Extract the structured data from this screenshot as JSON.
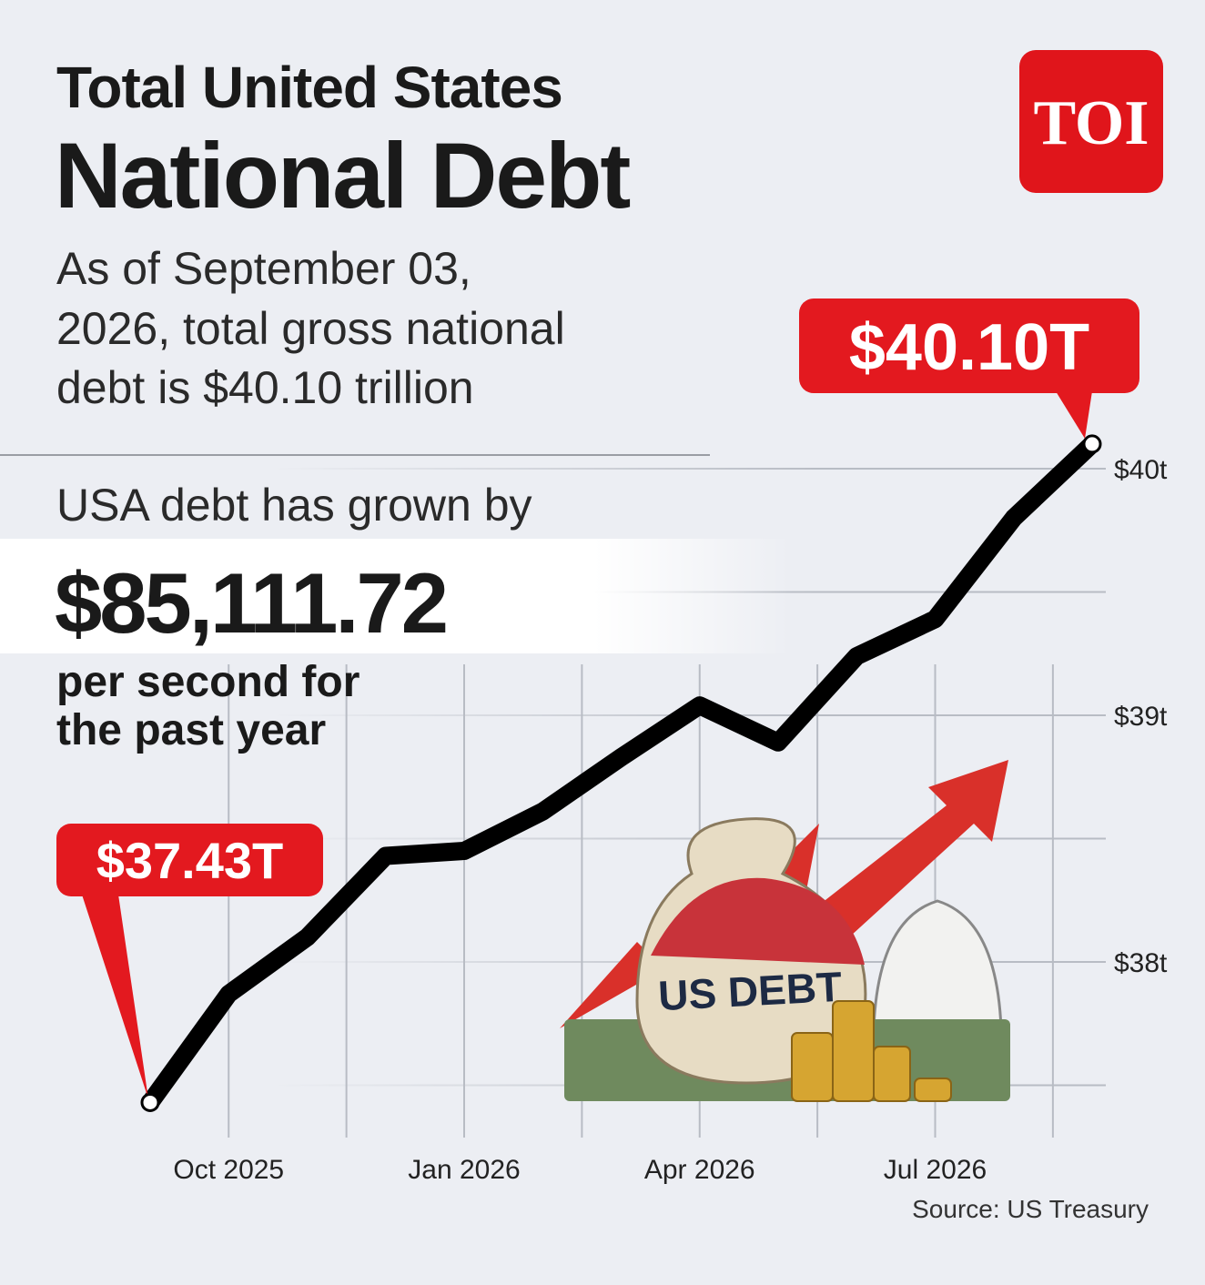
{
  "header": {
    "title_line1": "Total United States",
    "title_line2": "National Debt",
    "subtitle": [
      "As of September 03,",
      "2026, total gross national",
      "debt is $40.10 trillion"
    ],
    "logo": "TOI"
  },
  "stat": {
    "lead": "USA debt has grown by",
    "value": "$85,111.72",
    "tail": [
      "per second for",
      "the past year"
    ]
  },
  "illustration": {
    "label": "US DEBT"
  },
  "source": "Source: US Treasury",
  "chart_data": {
    "type": "line",
    "x": [
      "2025-09",
      "2025-10",
      "2025-11",
      "2025-12",
      "2026-01",
      "2026-02",
      "2026-03",
      "2026-04",
      "2026-05",
      "2026-06",
      "2026-07",
      "2026-08",
      "2026-09"
    ],
    "values": [
      37.43,
      37.87,
      38.1,
      38.43,
      38.45,
      38.61,
      38.83,
      39.04,
      38.89,
      39.24,
      39.39,
      39.8,
      40.1
    ],
    "value_labels": [
      "$37.43T",
      null,
      null,
      null,
      null,
      null,
      null,
      null,
      null,
      null,
      null,
      null,
      "$40.10T"
    ],
    "color": "#000000",
    "annotation_color": "#e3191f",
    "xlim": [
      "2025-09",
      "2026-09"
    ],
    "xticks": [
      {
        "value": "2025-10",
        "label": "Oct 2025"
      },
      {
        "value": "2026-01",
        "label": "Jan 2026"
      },
      {
        "value": "2026-04",
        "label": "Apr 2026"
      },
      {
        "value": "2026-07",
        "label": "Jul 2026"
      }
    ],
    "ylim": [
      37.3,
      40.3
    ],
    "yticks": [
      {
        "value": 38,
        "label": "$38t"
      },
      {
        "value": 39,
        "label": "$39t"
      },
      {
        "value": 40,
        "label": "$40t"
      }
    ],
    "grid": true
  }
}
